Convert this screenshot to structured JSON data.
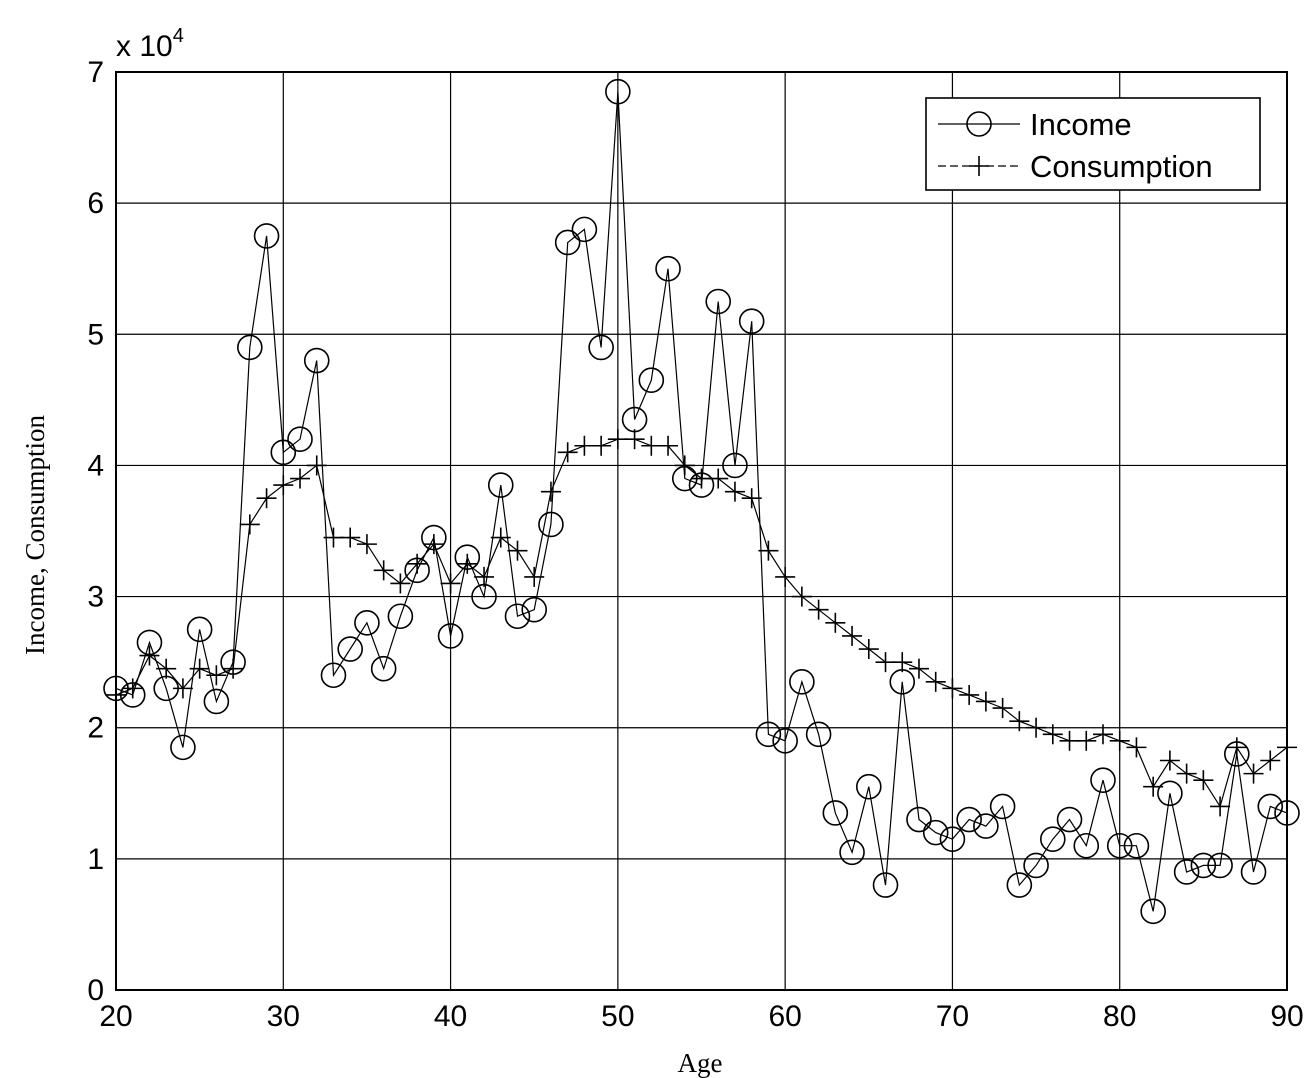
{
  "chart_data": {
    "type": "line",
    "xlabel": "Age",
    "ylabel": "Income, Consumption",
    "y_multiplier": {
      "base": "x 10",
      "exponent": "4"
    },
    "xlim": [
      20,
      90
    ],
    "ylim": [
      0,
      70000
    ],
    "x_ticks": [
      "20",
      "30",
      "40",
      "50",
      "60",
      "70",
      "80",
      "90"
    ],
    "y_ticks": [
      "0",
      "1",
      "2",
      "3",
      "4",
      "5",
      "6",
      "7"
    ],
    "grid": true,
    "legend_position": "top-right",
    "x": [
      20,
      21,
      22,
      23,
      24,
      25,
      26,
      27,
      28,
      29,
      30,
      31,
      32,
      33,
      34,
      35,
      36,
      37,
      38,
      39,
      40,
      41,
      42,
      43,
      44,
      45,
      46,
      47,
      48,
      49,
      50,
      51,
      52,
      53,
      54,
      55,
      56,
      57,
      58,
      59,
      60,
      61,
      62,
      63,
      64,
      65,
      66,
      67,
      68,
      69,
      70,
      71,
      72,
      73,
      74,
      75,
      76,
      77,
      78,
      79,
      80,
      81,
      82,
      83,
      84,
      85,
      86,
      87,
      88,
      89,
      90
    ],
    "series": [
      {
        "name": "Income",
        "marker": "circle",
        "values": [
          23000,
          22500,
          26500,
          23000,
          18500,
          27500,
          22000,
          25000,
          49000,
          57500,
          41000,
          42000,
          48000,
          24000,
          26000,
          28000,
          24500,
          28500,
          32000,
          34500,
          27000,
          33000,
          30000,
          38500,
          28500,
          29000,
          35500,
          57000,
          58000,
          49000,
          68500,
          43500,
          46500,
          55000,
          39000,
          38500,
          52500,
          40000,
          51000,
          19500,
          19000,
          23500,
          19500,
          13500,
          10500,
          15500,
          8000,
          23500,
          13000,
          12000,
          11500,
          13000,
          12500,
          14000,
          8000,
          9500,
          11500,
          13000,
          11000,
          16000,
          11000,
          11000,
          6000,
          15000,
          9000,
          9500,
          9500,
          18000,
          9000,
          14000,
          13500
        ]
      },
      {
        "name": "Consumption",
        "marker": "plus",
        "values": [
          22500,
          23000,
          25500,
          24500,
          23000,
          24500,
          24000,
          24500,
          35500,
          37500,
          38500,
          39000,
          40000,
          34500,
          34500,
          34000,
          32000,
          31000,
          32500,
          34000,
          31000,
          32500,
          31500,
          34500,
          33500,
          31500,
          38000,
          41000,
          41500,
          41500,
          42000,
          42000,
          41500,
          41500,
          40000,
          39000,
          39000,
          38000,
          37500,
          33500,
          31500,
          30000,
          29000,
          28000,
          27000,
          26000,
          25000,
          25000,
          24500,
          23500,
          23000,
          22500,
          22000,
          21500,
          20500,
          20000,
          19500,
          19000,
          19000,
          19500,
          19000,
          18500,
          15500,
          17500,
          16500,
          16000,
          14000,
          18500,
          16500,
          17500,
          18500
        ]
      }
    ]
  }
}
